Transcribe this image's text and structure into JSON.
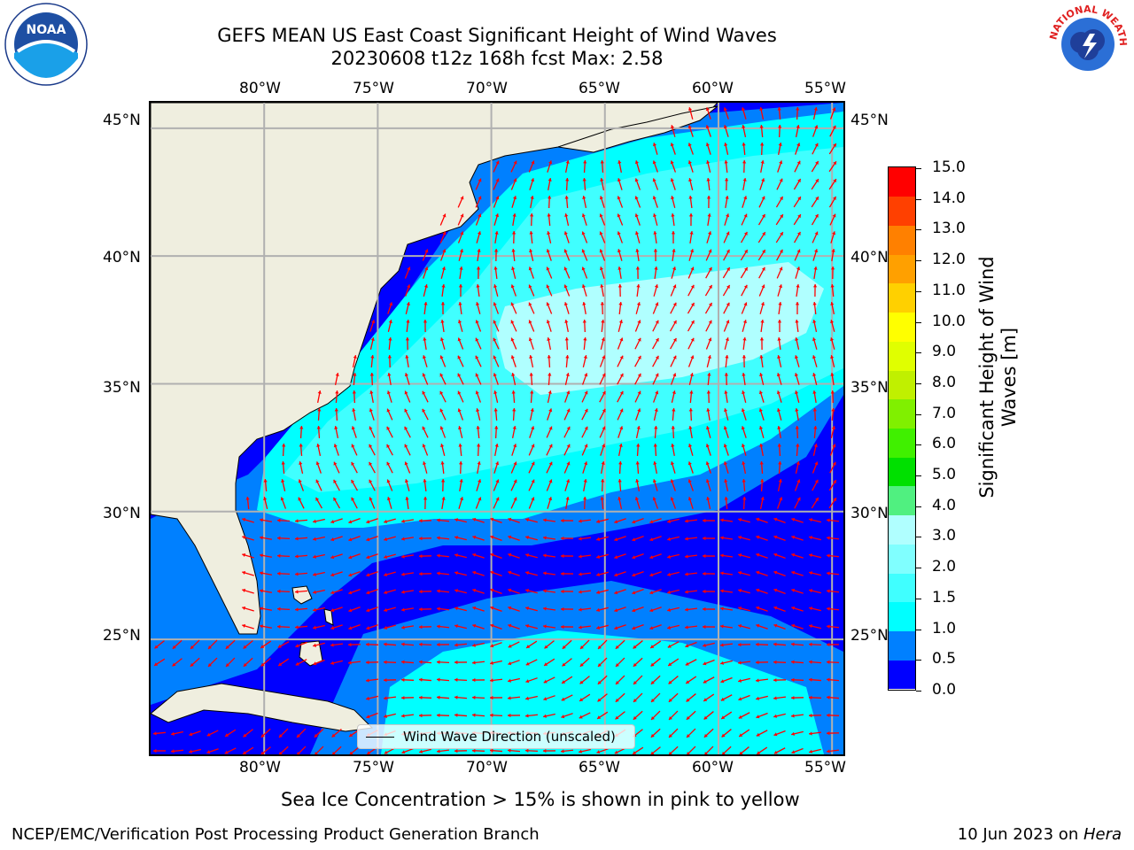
{
  "title": {
    "line1": "GEFS MEAN US East Coast Significant Height of Wind Waves",
    "line2": "20230608 t12z 168h fcst   Max: 2.58"
  },
  "map": {
    "lon_ticks": [
      "80°W",
      "75°W",
      "70°W",
      "65°W",
      "60°W",
      "55°W"
    ],
    "lat_ticks": [
      "45°N",
      "40°N",
      "35°N",
      "30°N",
      "25°N"
    ],
    "lon_range": [
      -85,
      -54.5
    ],
    "lat_range": [
      20.5,
      46
    ],
    "legend_label": "Wind Wave Direction (unscaled)",
    "arrow_color": "#ff0000",
    "land_color": "#efeedf"
  },
  "colorbar": {
    "label_line1": "Significant Height of Wind",
    "label_line2": "Waves [m]",
    "ticks": [
      "15.0",
      "14.0",
      "13.0",
      "12.0",
      "11.0",
      "10.0",
      "9.0",
      "8.0",
      "7.0",
      "6.0",
      "5.0",
      "4.0",
      "3.0",
      "2.0",
      "1.5",
      "1.0",
      "0.5",
      "0.0"
    ],
    "colors": [
      "#0000ff",
      "#0080ff",
      "#00ffff",
      "#40ffff",
      "#80ffff",
      "#b0ffff",
      "#50f080",
      "#00e000",
      "#40f000",
      "#80f000",
      "#c0f000",
      "#e0ff00",
      "#ffff00",
      "#ffd000",
      "#ffa000",
      "#ff8000",
      "#ff4000",
      "#ff0000"
    ]
  },
  "notes": {
    "sea_ice": "Sea Ice Concentration > 15% is shown in pink to yellow"
  },
  "footer": {
    "left": "NCEP/EMC/Verification Post Processing Product Generation Branch",
    "date": "10 Jun 2023 on ",
    "machine": "Hera"
  },
  "logos": {
    "left": {
      "icon": "noaa-logo",
      "text": "NOAA"
    },
    "right": {
      "icon": "national-weather-service-logo",
      "text": "NATIONAL WEATHER SERVICE"
    }
  }
}
